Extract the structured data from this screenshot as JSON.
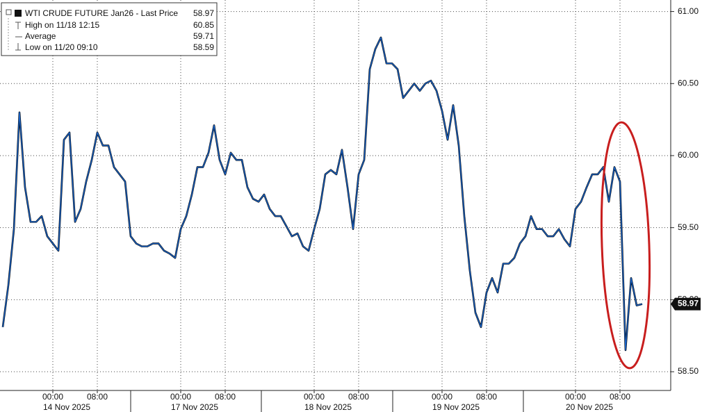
{
  "chart_data": {
    "type": "line",
    "categories": [
      null,
      null,
      null,
      null,
      null,
      null,
      null,
      null,
      null,
      "00:00",
      null,
      null,
      null,
      null,
      null,
      null,
      null,
      "08:00",
      null,
      null,
      null,
      null,
      null,
      null,
      null,
      null,
      null,
      null,
      null,
      null,
      null,
      null,
      "00:00",
      null,
      null,
      null,
      null,
      null,
      null,
      null,
      "08:00",
      null,
      null,
      null,
      null,
      null,
      null,
      null,
      null,
      null,
      null,
      null,
      null,
      null,
      null,
      null,
      "00:00",
      null,
      null,
      null,
      null,
      null,
      null,
      null,
      "08:00",
      null,
      null,
      null,
      null,
      null,
      null,
      null,
      null,
      null,
      null,
      null,
      null,
      null,
      null,
      "00:00",
      null,
      null,
      null,
      null,
      null,
      null,
      null,
      "08:00",
      null,
      null,
      null,
      null,
      null,
      null,
      null,
      null,
      null,
      null,
      null,
      null,
      null,
      null,
      null,
      "00:00",
      null,
      null,
      null,
      null,
      null,
      null,
      null,
      "08:00",
      null,
      null,
      null,
      null
    ],
    "dates": [
      null,
      null,
      null,
      null,
      null,
      null,
      null,
      null,
      null,
      "14 Nov 2025",
      null,
      null,
      null,
      null,
      null,
      null,
      null,
      null,
      null,
      null,
      null,
      null,
      null,
      null,
      null,
      null,
      null,
      null,
      null,
      null,
      null,
      null,
      "17 Nov 2025",
      null,
      null,
      null,
      null,
      null,
      null,
      null,
      null,
      null,
      null,
      null,
      null,
      null,
      null,
      null,
      null,
      null,
      null,
      null,
      null,
      null,
      null,
      null,
      "18 Nov 2025",
      null,
      null,
      null,
      null,
      null,
      null,
      null,
      null,
      null,
      null,
      null,
      null,
      null,
      null,
      null,
      null,
      null,
      null,
      null,
      null,
      null,
      null,
      "19 Nov 2025",
      null,
      null,
      null,
      null,
      null,
      null,
      null,
      null,
      null,
      null,
      null,
      null,
      null,
      null,
      null,
      null,
      null,
      null,
      null,
      null,
      null,
      null,
      null,
      "20 Nov 2025",
      null,
      null,
      null,
      null,
      null,
      null,
      null,
      null,
      null,
      null,
      null,
      null
    ],
    "series": [
      {
        "name": "WTI CRUDE FUTURE Jan26 - Last Price",
        "color": "#1a64c8",
        "values": [
          58.81,
          59.1,
          59.49,
          60.3,
          59.78,
          59.54,
          59.54,
          59.58,
          59.44,
          59.39,
          59.34,
          60.11,
          60.16,
          59.54,
          59.63,
          59.82,
          59.97,
          60.16,
          60.07,
          60.07,
          59.92,
          59.87,
          59.82,
          59.44,
          59.39,
          59.37,
          59.37,
          59.39,
          59.39,
          59.34,
          59.32,
          59.29,
          59.49,
          59.58,
          59.73,
          59.92,
          59.92,
          60.02,
          60.21,
          59.97,
          59.87,
          60.02,
          59.97,
          59.97,
          59.78,
          59.7,
          59.68,
          59.73,
          59.63,
          59.58,
          59.58,
          59.51,
          59.44,
          59.46,
          59.37,
          59.34,
          59.49,
          59.63,
          59.87,
          59.9,
          59.87,
          60.04,
          59.78,
          59.49,
          59.87,
          59.97,
          60.6,
          60.74,
          60.82,
          60.64,
          60.64,
          60.6,
          60.4,
          60.45,
          60.5,
          60.45,
          60.5,
          60.52,
          60.45,
          60.31,
          60.11,
          60.35,
          60.07,
          59.58,
          59.2,
          58.91,
          58.81,
          59.05,
          59.15,
          59.05,
          59.25,
          59.25,
          59.29,
          59.39,
          59.44,
          59.58,
          59.49,
          59.49,
          59.44,
          59.44,
          59.49,
          59.42,
          59.37,
          59.63,
          59.68,
          59.78,
          59.87,
          59.87,
          59.92,
          59.68,
          59.92,
          59.82,
          58.65,
          59.15,
          58.96,
          58.97
        ]
      }
    ],
    "legend": [
      {
        "label": "High on 11/18 12:15",
        "value": 60.85
      },
      {
        "label": "Average",
        "value": 59.71
      },
      {
        "label": "Low on 11/20 09:10",
        "value": 58.59
      }
    ],
    "last_price": 58.97,
    "ylim": [
      58.37,
      61.08
    ],
    "yticks": [
      {
        "value": 58.5,
        "label": "58.50"
      },
      {
        "value": 59,
        "label": "59.00"
      },
      {
        "value": 59.5,
        "label": "59.50"
      },
      {
        "value": 60,
        "label": "60.00"
      },
      {
        "value": 60.5,
        "label": "60.50"
      },
      {
        "value": 61,
        "label": "61.00"
      }
    ],
    "grid": true
  }
}
